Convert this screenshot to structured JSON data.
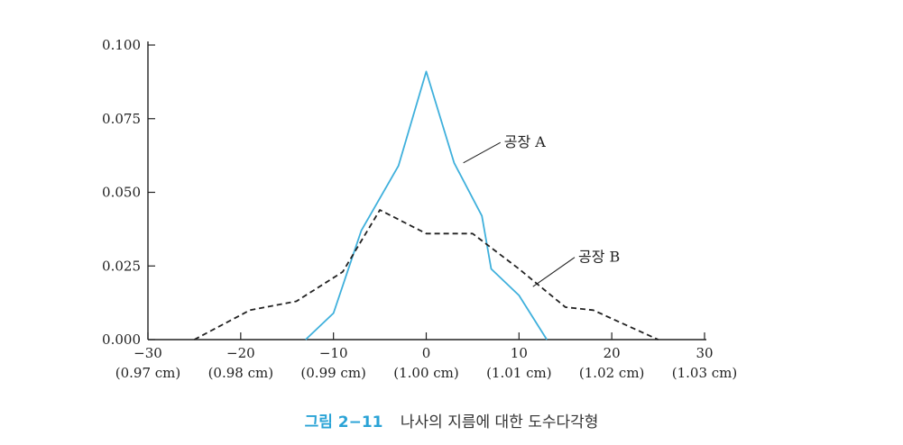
{
  "chart_data": {
    "type": "line",
    "x": [
      -25,
      -20,
      -15,
      -10,
      -8,
      -5,
      0,
      5,
      7,
      10,
      15,
      18,
      25
    ],
    "xlim": [
      -30,
      30
    ],
    "ylim": [
      0,
      0.1
    ],
    "xticks": [
      -30,
      -20,
      -10,
      0,
      10,
      20,
      30
    ],
    "xtick_labels": [
      "−30",
      "−20",
      "−10",
      "0",
      "10",
      "20",
      "30"
    ],
    "xtick_sublabels": [
      "(0.97 cm)",
      "(0.98 cm)",
      "(0.99 cm)",
      "(1.00 cm)",
      "(1.01 cm)",
      "(1.02 cm)",
      "(1.03 cm)"
    ],
    "yticks": [
      0,
      0.025,
      0.05,
      0.075,
      0.1
    ],
    "ytick_labels": [
      "0.000",
      "0.025",
      "0.050",
      "0.075",
      "0.100"
    ],
    "grid": false,
    "series": [
      {
        "name": "공장 A",
        "color": "#3fb0dc",
        "style": "solid",
        "x": [
          -13,
          -10,
          -7,
          -3,
          0,
          3,
          6,
          7,
          10,
          13
        ],
        "y": [
          0,
          0.009,
          0.037,
          0.059,
          0.091,
          0.06,
          0.042,
          0.024,
          0.015,
          0
        ]
      },
      {
        "name": "공장 B",
        "color": "#222222",
        "style": "dashed",
        "x": [
          -25,
          -19,
          -14,
          -9,
          -5,
          0,
          5,
          10,
          15,
          18,
          25
        ],
        "y": [
          0,
          0.01,
          0.013,
          0.023,
          0.044,
          0.036,
          0.036,
          0.024,
          0.011,
          0.01,
          0
        ]
      }
    ]
  },
  "caption": {
    "figure_number": "그림 2−11",
    "text": "나사의 지름에 대한 도수다각형"
  }
}
